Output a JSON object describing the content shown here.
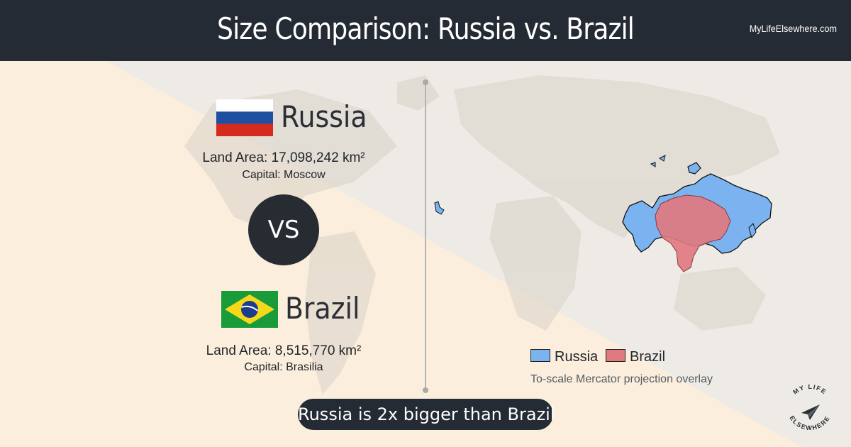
{
  "header": {
    "title": "Size Comparison: Russia vs. Brazil",
    "brand": "MyLifeElsewhere.com"
  },
  "country_a": {
    "name": "Russia",
    "land_area": "Land Area: 17,098,242 km²",
    "capital": "Capital: Moscow",
    "flag_icon": "russia-flag-icon",
    "flag_colors": [
      "#ffffff",
      "#1f4fa1",
      "#d52b1e"
    ]
  },
  "vs_label": "VS",
  "country_b": {
    "name": "Brazil",
    "land_area": "Land Area: 8,515,770 km²",
    "capital": "Capital: Brasilia",
    "flag_icon": "brazil-flag-icon",
    "flag_colors": [
      "#1a9b3a",
      "#f6d81b",
      "#1c3d8c"
    ]
  },
  "legend": {
    "items": [
      {
        "label": "Russia",
        "color": "#7ab3f0"
      },
      {
        "label": "Brazil",
        "color": "#e07a80"
      }
    ],
    "note": "To-scale Mercator projection overlay"
  },
  "result": "Russia is 2x bigger than Brazil",
  "logo": {
    "text": "MY LIFE ELSEWHERE",
    "icon": "paper-plane-icon"
  },
  "colors": {
    "header_bg": "#252b34",
    "background": "#fbeedd"
  }
}
